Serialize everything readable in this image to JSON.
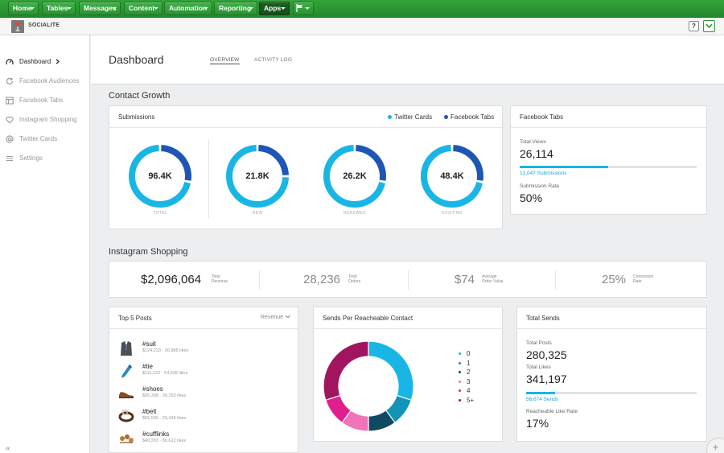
{
  "topnav": {
    "items": [
      {
        "label": "Home"
      },
      {
        "label": "Tables"
      },
      {
        "label": "Messages"
      },
      {
        "label": "Content"
      },
      {
        "label": "Automation"
      },
      {
        "label": "Reporting"
      },
      {
        "label": "Apps"
      }
    ],
    "flag_icon": "flag-icon"
  },
  "appbar": {
    "app_name": "SOCIALITE",
    "help_label": "?"
  },
  "sidebar": {
    "items": [
      {
        "label": "Dashboard",
        "icon": "gauge-icon"
      },
      {
        "label": "Facebook Audiences",
        "icon": "refresh-icon"
      },
      {
        "label": "Facebook Tabs",
        "icon": "window-icon"
      },
      {
        "label": "Instagram Shopping",
        "icon": "heart-icon"
      },
      {
        "label": "Twitter Cards",
        "icon": "at-icon"
      },
      {
        "label": "Settings",
        "icon": "menu-icon"
      }
    ],
    "collapse_label": "«"
  },
  "header": {
    "title": "Dashboard",
    "tabs": [
      {
        "label": "OVERVIEW"
      },
      {
        "label": "ACTIVITY LOG"
      }
    ]
  },
  "contact_growth": {
    "title": "Contact Growth",
    "submissions": {
      "title": "Submissions",
      "legend": [
        {
          "label": "Twitter Cards",
          "color": "#19b6e5"
        },
        {
          "label": "Facebook Tabs",
          "color": "#1f56b5"
        }
      ],
      "donuts": [
        {
          "value": "96.4K",
          "label": "TOTAL",
          "twitter_fraction": 0.72
        },
        {
          "value": "21.8K",
          "label": "NEW",
          "twitter_fraction": 0.75
        },
        {
          "value": "26.2K",
          "label": "RENEWED",
          "twitter_fraction": 0.72
        },
        {
          "value": "48.4K",
          "label": "EXISTING",
          "twitter_fraction": 0.72
        }
      ]
    },
    "facebook_tabs": {
      "title": "Facebook Tabs",
      "total_views_label": "Total Views",
      "total_views": "26,114",
      "submissions_link": "13,047 Submissions",
      "submissions_fraction": 0.5,
      "rate_label": "Submission Rate",
      "rate": "50%"
    }
  },
  "instagram": {
    "title": "Instagram Shopping",
    "kpis": [
      {
        "value": "$2,096,064",
        "label_line1": "Total",
        "label_line2": "Revenue",
        "color": "#222222"
      },
      {
        "value": "28,236",
        "label_line1": "Total",
        "label_line2": "Orders",
        "color": "#8a8a8a"
      },
      {
        "value": "$74",
        "label_line1": "Average",
        "label_line2": "Order Value",
        "color": "#8a8a8a"
      },
      {
        "value": "25%",
        "label_line1": "Conversion",
        "label_line2": "Rate",
        "color": "#8a8a8a"
      }
    ]
  },
  "top_posts": {
    "title": "Top 5 Posts",
    "sort_label": "Revenue",
    "posts": [
      {
        "tag": "#suit",
        "meta": "$124,233 · 26,886 likes",
        "icon": "suit-icon"
      },
      {
        "tag": "#tie",
        "meta": "$111,222 · 54,928 likes",
        "icon": "tie-icon"
      },
      {
        "tag": "#shoes",
        "meta": "$95,308 · 39,253 likes",
        "icon": "shoes-icon"
      },
      {
        "tag": "#belt",
        "meta": "$65,535 · 20,439 likes",
        "icon": "belt-icon"
      },
      {
        "tag": "#cufflinks",
        "meta": "$40,293 · 80,612 likes",
        "icon": "cufflinks-icon"
      }
    ]
  },
  "sends_per_contact": {
    "title": "Sends Per Reacheable Contact"
  },
  "chart_data": {
    "type": "pie",
    "categories": [
      "0",
      "1",
      "2",
      "3",
      "4",
      "5+"
    ],
    "values": [
      30,
      10,
      10,
      10,
      10,
      30
    ],
    "colors": [
      "#19b6e5",
      "#1393b8",
      "#0f4a63",
      "#f274b8",
      "#e01f8f",
      "#a3145f"
    ],
    "legend_position": "right"
  },
  "total_sends": {
    "title": "Total Sends",
    "posts_label": "Total Posts",
    "posts_value": "280,325",
    "likes_label": "Total Likes",
    "likes_value": "341,197",
    "sends_link": "56,674 Sends",
    "sends_fraction": 0.17,
    "rate_label": "Reacheable Like Rate",
    "rate_value": "17%"
  }
}
